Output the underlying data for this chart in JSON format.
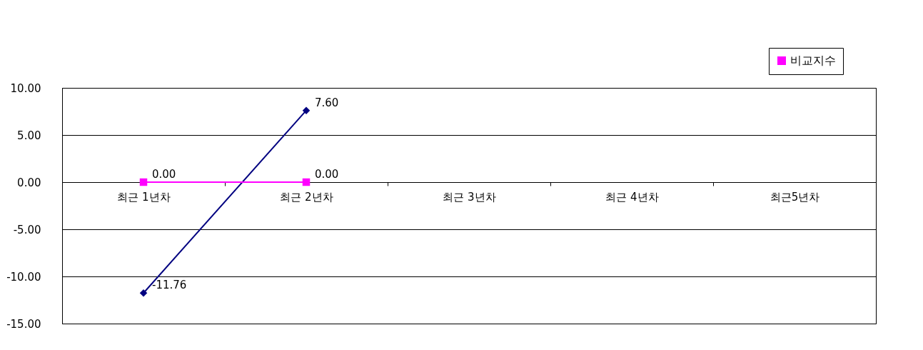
{
  "chart_data": {
    "type": "line",
    "categories": [
      "최근 1년차",
      "최근 2년차",
      "최근 3년차",
      "최근 4년차",
      "최근5년차"
    ],
    "series": [
      {
        "color": "#000080",
        "marker": "diamond",
        "values": [
          -11.76,
          7.6,
          null,
          null,
          null
        ],
        "value_labels": [
          "-11.76",
          "7.60",
          null,
          null,
          null
        ]
      },
      {
        "name": "비교지수",
        "color": "#ff00ff",
        "marker": "square",
        "values": [
          0,
          0,
          null,
          null,
          null
        ],
        "value_labels": [
          "0.00",
          "0.00",
          null,
          null,
          null
        ]
      }
    ],
    "ylim": [
      -15,
      10
    ],
    "yticks": [
      {
        "value": -15,
        "label": "-15.00"
      },
      {
        "value": -10,
        "label": "-10.00"
      },
      {
        "value": -5,
        "label": "-5.00"
      },
      {
        "value": 0,
        "label": "0.00"
      },
      {
        "value": 5,
        "label": "5.00"
      },
      {
        "value": 10,
        "label": "10.00"
      }
    ],
    "grid": "y",
    "legend": "top right"
  }
}
